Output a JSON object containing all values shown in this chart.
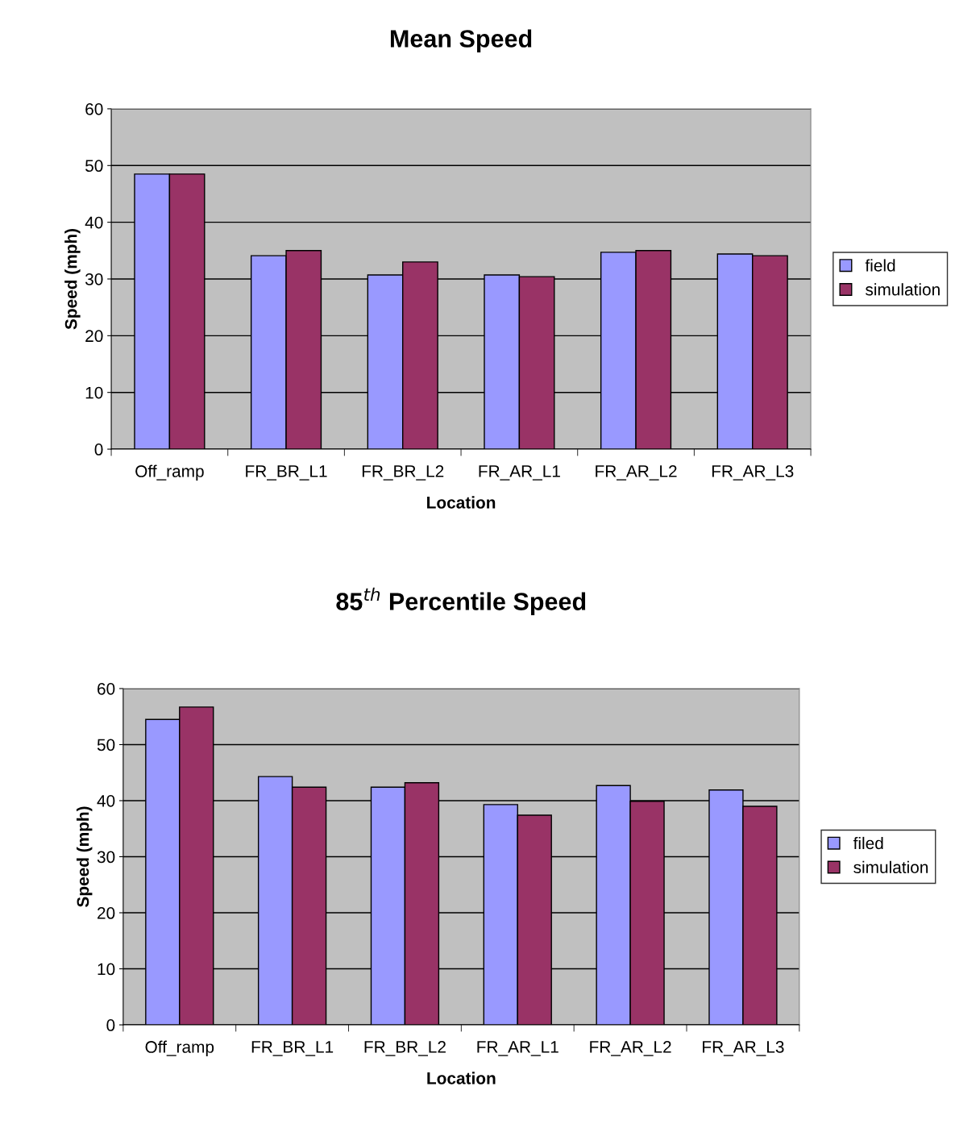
{
  "chart_data": [
    {
      "type": "bar",
      "title": "Mean Speed",
      "xlabel": "Location",
      "ylabel": "Speed (mph)",
      "categories": [
        "Off_ramp",
        "FR_BR_L1",
        "FR_BR_L2",
        "FR_AR_L1",
        "FR_AR_L2",
        "FR_AR_L3"
      ],
      "series": [
        {
          "name": "field",
          "color": "#9999ff",
          "values": [
            48.5,
            34.1,
            30.7,
            30.7,
            34.7,
            34.4
          ]
        },
        {
          "name": "simulation",
          "color": "#993366",
          "values": [
            48.5,
            35.0,
            33.0,
            30.4,
            35.0,
            34.1
          ]
        }
      ],
      "ylim": [
        0,
        60
      ],
      "yticks": [
        0,
        10,
        20,
        30,
        40,
        50,
        60
      ],
      "grid": "y",
      "legend": "right"
    },
    {
      "type": "bar",
      "title": "85$^{th}$ Percentile Speed",
      "xlabel": "Location",
      "ylabel": "Speed (mph)",
      "categories": [
        "Off_ramp",
        "FR_BR_L1",
        "FR_BR_L2",
        "FR_AR_L1",
        "FR_AR_L2",
        "FR_AR_L3"
      ],
      "series": [
        {
          "name": "filed",
          "color": "#9999ff",
          "values": [
            54.5,
            44.3,
            42.4,
            39.3,
            42.7,
            41.9
          ]
        },
        {
          "name": "simulation",
          "color": "#993366",
          "values": [
            56.7,
            42.4,
            43.2,
            37.4,
            39.9,
            39.0
          ]
        }
      ],
      "ylim": [
        0,
        60
      ],
      "yticks": [
        0,
        10,
        20,
        30,
        40,
        50,
        60
      ],
      "grid": "y",
      "legend": "right"
    }
  ]
}
